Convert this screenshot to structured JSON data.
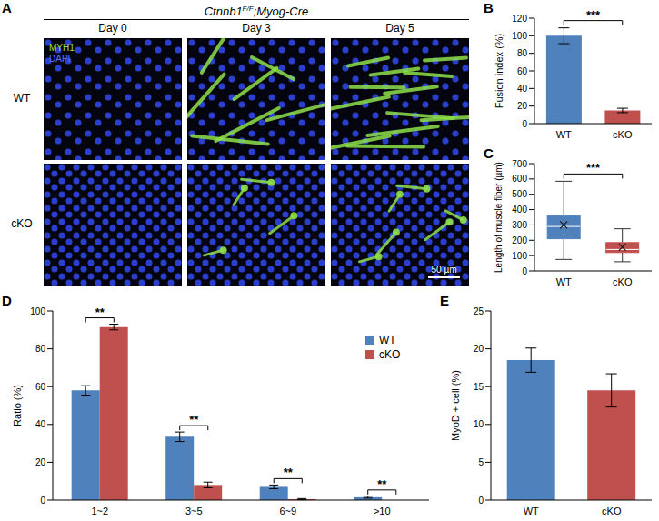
{
  "chart_data": [
    {
      "type": "bar",
      "title": "B",
      "categories": [
        "WT",
        "cKO"
      ],
      "values": [
        100,
        15
      ],
      "errors": [
        9,
        2.5
      ],
      "colors": [
        "#4F81BD",
        "#C0504D"
      ],
      "y_label": "Fusion index (%)",
      "ylim": [
        0,
        120
      ],
      "yticks": [
        0,
        20,
        40,
        60,
        80,
        100,
        120
      ],
      "annotations": [
        "***"
      ]
    },
    {
      "type": "box",
      "title": "C",
      "categories": [
        "WT",
        "cKO"
      ],
      "stats": [
        {
          "min": 75,
          "q1": 210,
          "median": 290,
          "mean": 300,
          "q3": 360,
          "max": 585
        },
        {
          "min": 60,
          "q1": 120,
          "median": 140,
          "mean": 155,
          "q3": 185,
          "max": 275
        }
      ],
      "colors": [
        "#4F81BD",
        "#C0504D"
      ],
      "y_label": "Length of muscle fiber (µm)",
      "ylim": [
        0,
        700
      ],
      "yticks": [
        0,
        100,
        200,
        300,
        400,
        500,
        600,
        700
      ],
      "annotations": [
        "***"
      ]
    },
    {
      "type": "bar",
      "title": "D",
      "categories": [
        "1~2",
        "3~5",
        "6~9",
        ">10"
      ],
      "series": [
        {
          "name": "WT",
          "color": "#4F81BD",
          "values": [
            58,
            33.5,
            7,
            1.5
          ],
          "errors": [
            2.5,
            2.5,
            1,
            0.5
          ]
        },
        {
          "name": "cKO",
          "color": "#C0504D",
          "values": [
            91.5,
            8,
            0.5,
            0
          ],
          "errors": [
            1.5,
            1.5,
            0.3,
            0
          ]
        }
      ],
      "y_label": "Ratio (%)",
      "ylim": [
        0,
        100
      ],
      "yticks": [
        0,
        20,
        40,
        60,
        80,
        100
      ],
      "legend": "upper right",
      "annotations": [
        "**",
        "**",
        "**",
        "**"
      ]
    },
    {
      "type": "bar",
      "title": "E",
      "categories": [
        "WT",
        "cKO"
      ],
      "values": [
        18.5,
        14.5
      ],
      "errors": [
        1.6,
        2.2
      ],
      "colors": [
        "#4F81BD",
        "#C0504D"
      ],
      "y_label": "MyoD + cell (%)",
      "ylim": [
        0,
        25
      ],
      "yticks": [
        0,
        5,
        10,
        15,
        20,
        25
      ]
    }
  ],
  "image_panel": {
    "label": "A",
    "title_parts": [
      "Ctnnb1",
      "F/F",
      ";Myog-Cre"
    ],
    "columns": [
      "Day 0",
      "Day 3",
      "Day 5"
    ],
    "rows": [
      "WT",
      "cKO"
    ],
    "stain_labels": [
      {
        "text": "MYH1",
        "color": "#9be03c"
      },
      {
        "text": "DAPI",
        "color": "#5a78ff"
      }
    ],
    "scale_bar": "50 µm"
  }
}
